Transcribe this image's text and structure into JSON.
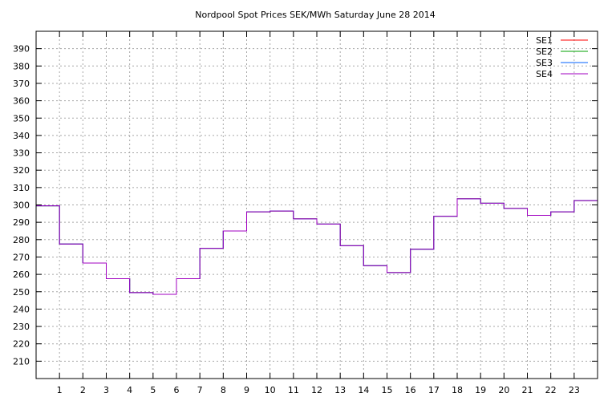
{
  "chart_data": {
    "type": "line",
    "title": "Nordpool Spot Prices SEK/MWh Saturday June 28 2014",
    "xlabel": "",
    "ylabel": "",
    "x_ticks": [
      1,
      2,
      3,
      4,
      5,
      6,
      7,
      8,
      9,
      10,
      11,
      12,
      13,
      14,
      15,
      16,
      17,
      18,
      19,
      20,
      21,
      22,
      23
    ],
    "y_ticks": [
      210,
      220,
      230,
      240,
      250,
      260,
      270,
      280,
      290,
      300,
      310,
      320,
      330,
      340,
      350,
      360,
      370,
      380,
      390
    ],
    "xlim": [
      0,
      24
    ],
    "ylim": [
      200,
      400
    ],
    "grid": true,
    "step": true,
    "legend_position": "top-right",
    "series": [
      {
        "name": "SE1",
        "color": "#ff0000",
        "values": [
          299.5,
          277.5,
          266.5,
          257.5,
          249.5,
          248.5,
          257.5,
          275,
          285,
          296,
          296.5,
          292,
          289,
          276.5,
          265,
          261,
          274.5,
          293.5,
          303.5,
          301,
          298,
          294,
          296,
          302.5
        ]
      },
      {
        "name": "SE2",
        "color": "#00a000",
        "values": [
          299.5,
          277.5,
          266.5,
          257.5,
          249.5,
          248.5,
          257.5,
          275,
          285,
          296,
          296.5,
          292,
          289,
          276.5,
          265,
          261,
          274.5,
          293.5,
          303.5,
          301,
          298,
          294,
          296,
          302.5
        ]
      },
      {
        "name": "SE3",
        "color": "#0060ff",
        "values": [
          299.5,
          277.5,
          266.5,
          257.5,
          249.5,
          248.5,
          257.5,
          275,
          285,
          296,
          296.5,
          292,
          289,
          276.5,
          265,
          261,
          274.5,
          293.5,
          303.5,
          301,
          298,
          294,
          296,
          302.5
        ]
      },
      {
        "name": "SE4",
        "color": "#a000c0",
        "values": [
          299.5,
          277.5,
          266.5,
          257.5,
          249.5,
          248.5,
          257.5,
          275,
          285,
          296,
          296.5,
          292,
          289,
          276.5,
          265,
          261,
          274.5,
          293.5,
          303.5,
          301,
          298,
          294,
          296,
          302.5
        ]
      }
    ]
  }
}
